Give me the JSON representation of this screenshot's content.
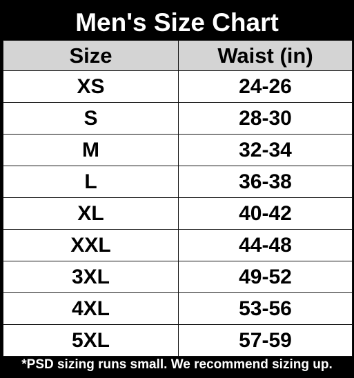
{
  "title": "Men's Size Chart",
  "table": {
    "headers": [
      "Size",
      "Waist (in)"
    ],
    "rows": [
      [
        "XS",
        "24-26"
      ],
      [
        "S",
        "28-30"
      ],
      [
        "M",
        "32-34"
      ],
      [
        "L",
        "36-38"
      ],
      [
        "XL",
        "40-42"
      ],
      [
        "XXL",
        "44-48"
      ],
      [
        "3XL",
        "49-52"
      ],
      [
        "4XL",
        "53-56"
      ],
      [
        "5XL",
        "57-59"
      ]
    ]
  },
  "footnote": "*PSD sizing runs small. We recommend sizing up.",
  "colors": {
    "background": "#000000",
    "header_fill": "#d4d4d4",
    "cell_fill": "#ffffff",
    "title_text": "#ffffff"
  }
}
